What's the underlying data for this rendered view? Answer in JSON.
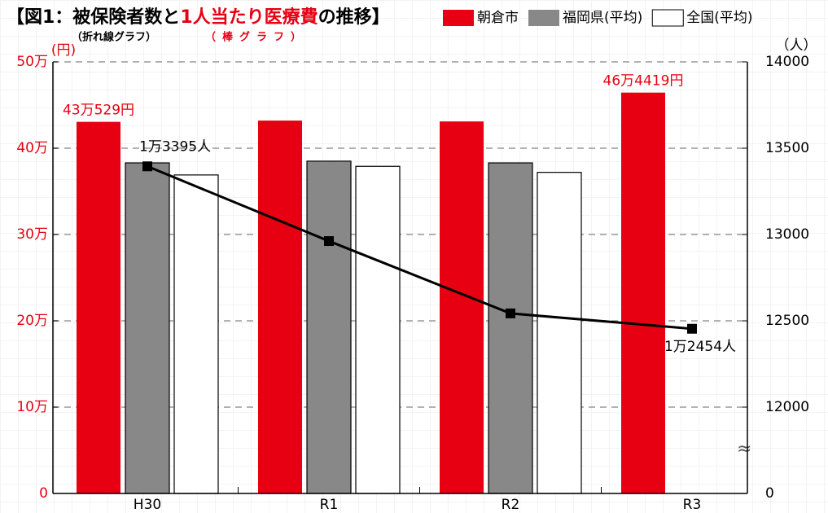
{
  "chart_data": {
    "type": "bar_line",
    "title_parts": [
      "【図1：被保険者数と",
      "1人当たり医療費",
      "の推移】"
    ],
    "subtitle_line": "（折れ線グラフ）",
    "subtitle_bar": "（棒グラフ）",
    "y_unit": "(円)",
    "y2_unit": "（人）",
    "categories": [
      "H30",
      "R1",
      "R2",
      "R3"
    ],
    "series": [
      {
        "name": "朝倉市",
        "color": "#e60012",
        "values": [
          430529,
          432000,
          431000,
          464419
        ],
        "value_labels": [
          "43万529円",
          null,
          null,
          "46万4419円"
        ]
      },
      {
        "name": "福岡県(平均)",
        "color": "#888888",
        "values": [
          383000,
          385000,
          383000,
          null
        ]
      },
      {
        "name": "全国(平均)",
        "color": "#ffffff",
        "values": [
          369000,
          379000,
          372000,
          null
        ]
      },
      {
        "type": "line",
        "axis": "y2",
        "color": "#000000",
        "values": [
          13395,
          12962,
          12543,
          12454
        ],
        "value_labels": [
          "1万3395人",
          null,
          null,
          "1万2454人"
        ]
      }
    ],
    "ylim": [
      0,
      500000
    ],
    "yticks": [
      0,
      {
        "value": 100000,
        "label": "10万"
      },
      {
        "value": 200000,
        "label": "20万"
      },
      {
        "value": 300000,
        "label": "30万"
      },
      {
        "value": 400000,
        "label": "40万"
      },
      {
        "value": 500000,
        "label": "50万"
      }
    ],
    "y2lim": [
      12000,
      14000
    ],
    "y2ticks": [
      12000,
      12500,
      13000,
      13500,
      14000
    ],
    "y2_base_tick": 0,
    "grid": true
  }
}
